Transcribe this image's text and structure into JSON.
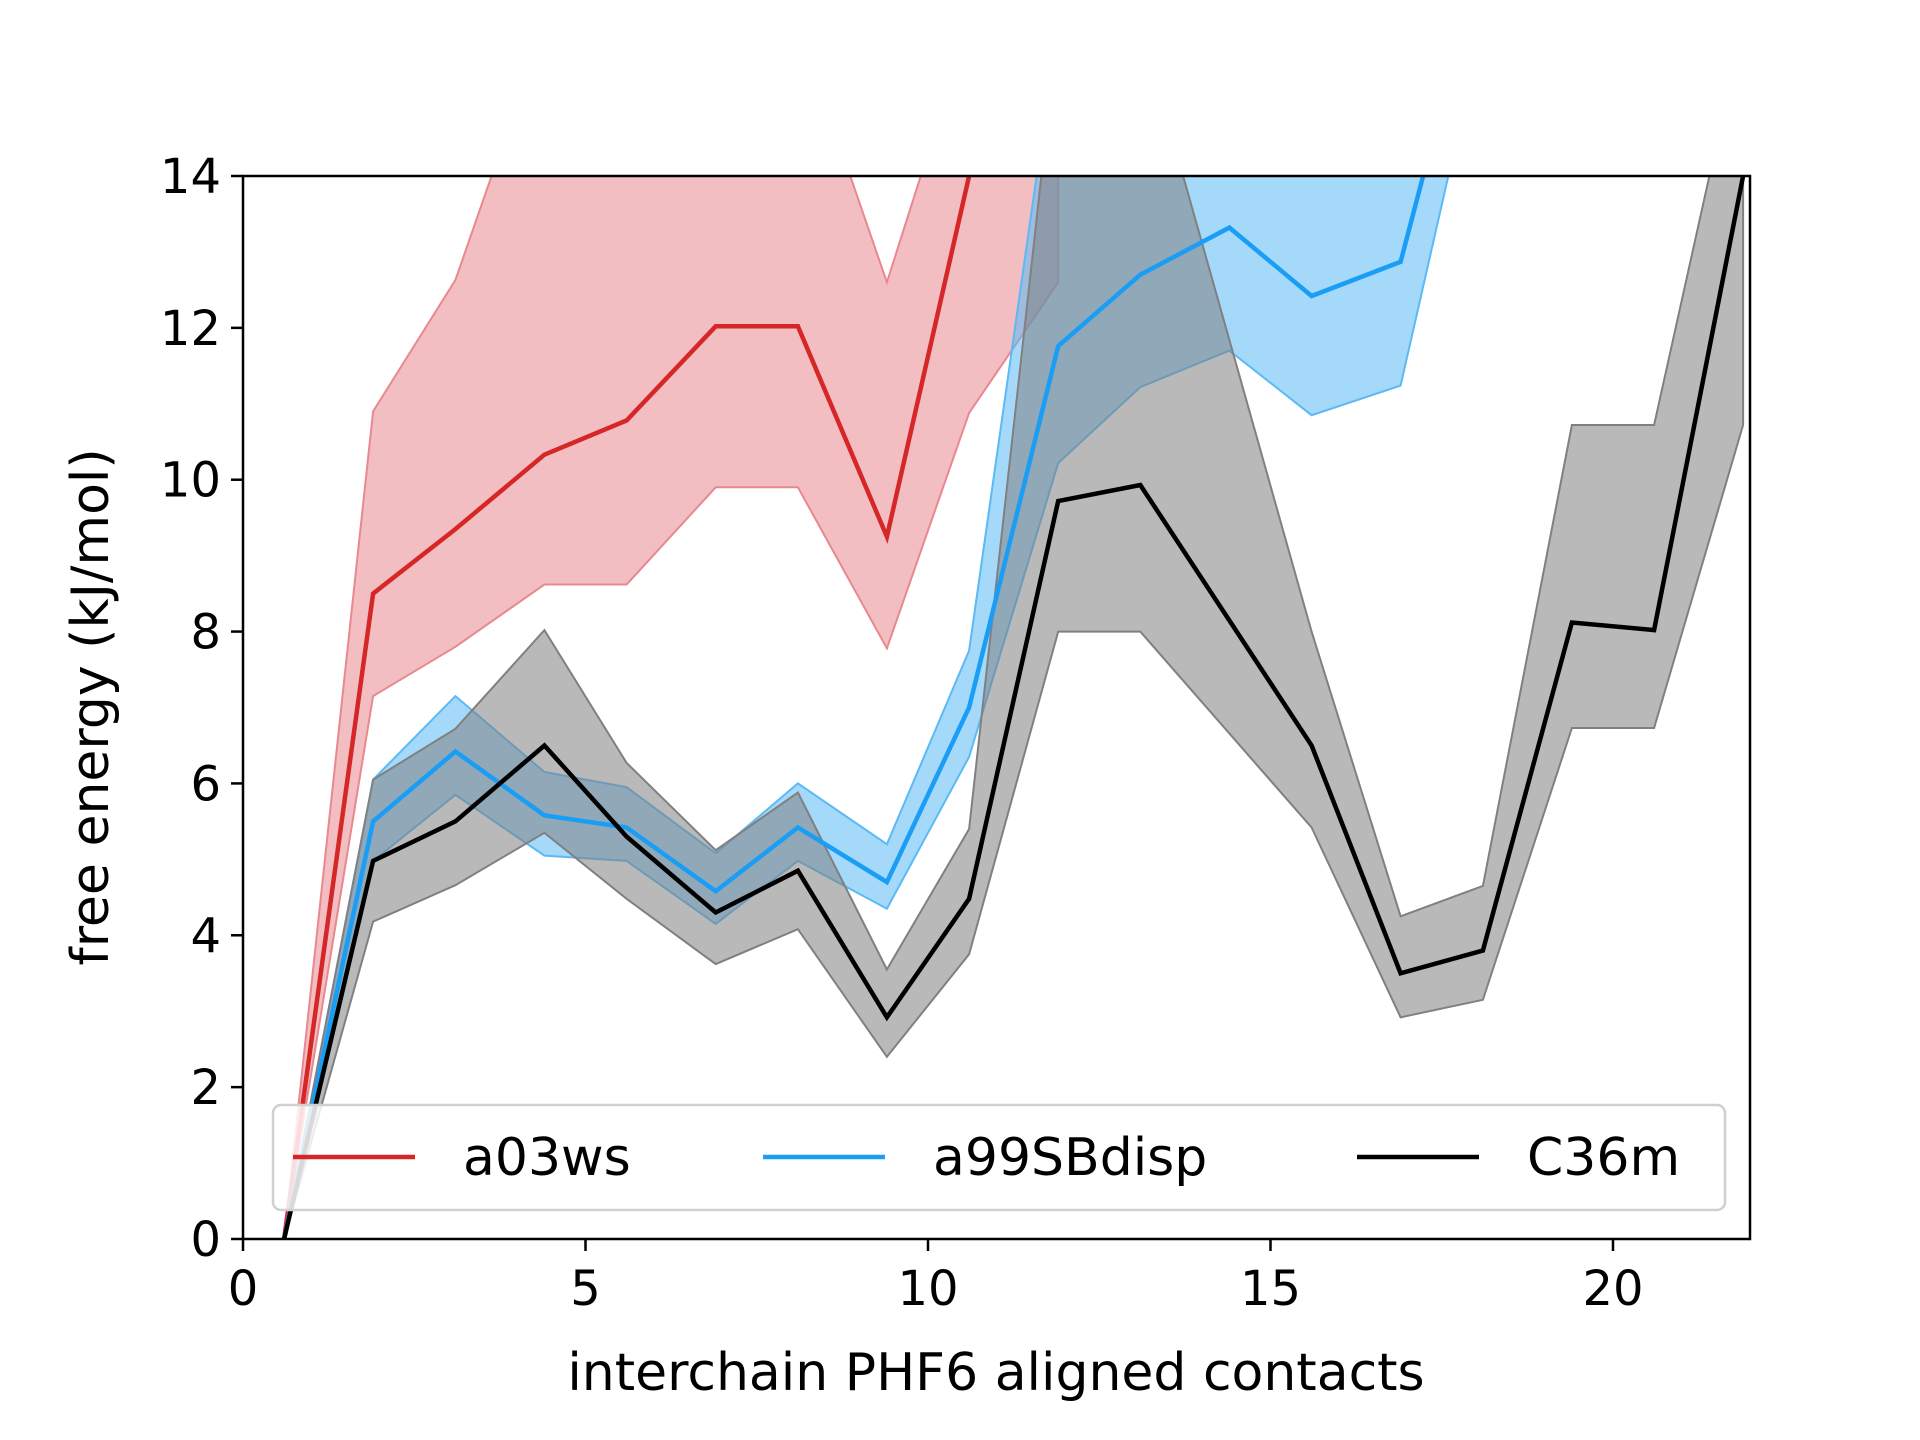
{
  "chart_data": {
    "type": "line",
    "title": "",
    "xlabel": "interchain PHF6 aligned contacts",
    "ylabel": "free energy (kJ/mol)",
    "xlim": [
      0,
      22
    ],
    "ylim": [
      0,
      14
    ],
    "xticks": [
      0,
      5,
      10,
      15,
      20
    ],
    "yticks": [
      0,
      2,
      4,
      6,
      8,
      10,
      12,
      14
    ],
    "grid": false,
    "legend": {
      "placement": "bottom",
      "columns": 3
    },
    "series": [
      {
        "name": "a03ws",
        "color": "#d62728",
        "band_color": "#e8888f",
        "x": [
          0.6,
          1.9,
          3.1,
          4.4,
          5.6,
          6.9,
          8.1,
          9.4,
          10.6,
          11.9
        ],
        "y": [
          0.0,
          8.5,
          9.35,
          10.33,
          10.78,
          12.02,
          12.02,
          9.25,
          14.0,
          16.5
        ],
        "lower": [
          0.0,
          7.15,
          7.8,
          8.62,
          8.62,
          9.9,
          9.9,
          7.78,
          10.88,
          12.6
        ],
        "upper": [
          0.0,
          10.9,
          12.63,
          16.0,
          16.0,
          16.0,
          16.0,
          12.6,
          16.0,
          16.0
        ]
      },
      {
        "name": "a99SBdisp",
        "color": "#1a9ef5",
        "band_color": "#5bbaf5",
        "x": [
          0.6,
          1.9,
          3.1,
          4.4,
          5.6,
          6.9,
          8.1,
          9.4,
          10.6,
          11.9,
          13.1,
          14.4,
          15.6,
          16.9,
          18.1
        ],
        "y": [
          0.0,
          5.5,
          6.42,
          5.58,
          5.42,
          4.58,
          5.42,
          4.7,
          7.0,
          11.76,
          12.7,
          13.32,
          12.42,
          12.87,
          17.0
        ],
        "lower": [
          0.0,
          4.98,
          5.85,
          5.05,
          4.98,
          4.15,
          4.98,
          4.35,
          6.35,
          10.22,
          11.22,
          11.7,
          10.85,
          11.24,
          16.0
        ],
        "upper": [
          0.0,
          6.05,
          7.15,
          6.15,
          5.95,
          5.08,
          6.0,
          5.2,
          7.75,
          16.0,
          16.0,
          16.0,
          16.0,
          16.0,
          16.0
        ]
      },
      {
        "name": "C36m",
        "color": "#000000",
        "band_color": "#808080",
        "x": [
          0.6,
          1.9,
          3.1,
          4.4,
          5.6,
          6.9,
          8.1,
          9.4,
          10.6,
          11.9,
          13.1,
          15.6,
          16.9,
          18.1,
          19.4,
          20.6,
          21.9
        ],
        "y": [
          0.0,
          4.98,
          5.5,
          6.5,
          5.3,
          4.3,
          4.85,
          2.92,
          4.48,
          9.72,
          9.93,
          6.5,
          3.5,
          3.8,
          8.12,
          8.02,
          14.0
        ],
        "lower": [
          0.0,
          4.18,
          4.66,
          5.35,
          4.48,
          3.62,
          4.08,
          2.4,
          3.75,
          8.0,
          8.0,
          5.42,
          2.92,
          3.15,
          6.73,
          6.73,
          10.72
        ],
        "upper": [
          0.0,
          6.05,
          6.72,
          8.02,
          6.27,
          5.12,
          5.88,
          3.55,
          5.4,
          16.0,
          16.0,
          8.0,
          4.25,
          4.65,
          10.72,
          10.72,
          16.0
        ]
      }
    ]
  }
}
